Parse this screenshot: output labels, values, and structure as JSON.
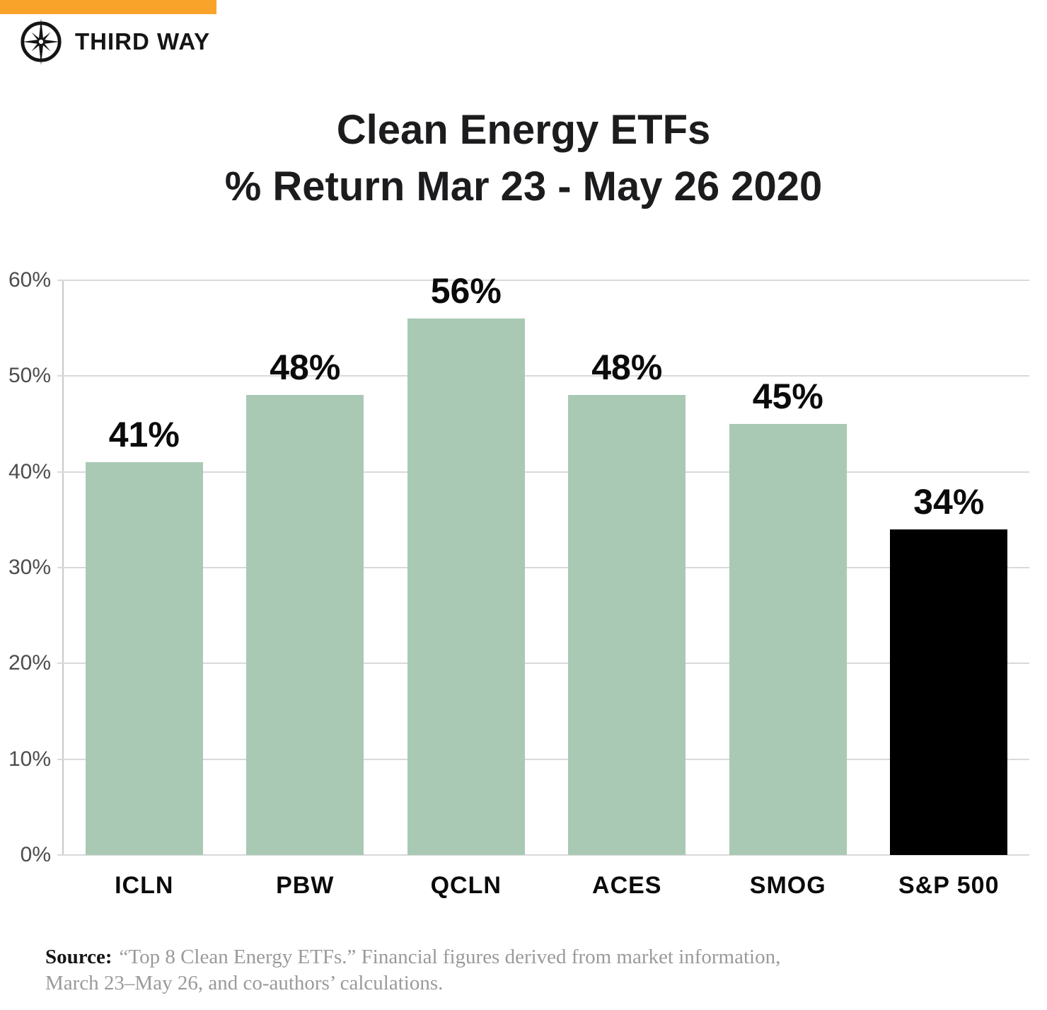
{
  "brand": {
    "name": "THIRD WAY",
    "accent_color": "#FAA32B",
    "logo_icon": "compass-star-icon"
  },
  "title": {
    "line1": "Clean Energy ETFs",
    "line2": "% Return Mar 23 - May 26 2020"
  },
  "chart_data": {
    "type": "bar",
    "title": "Clean Energy ETFs % Return Mar 23 - May 26 2020",
    "categories": [
      "ICLN",
      "PBW",
      "QCLN",
      "ACES",
      "SMOG",
      "S&P 500"
    ],
    "values": [
      41,
      48,
      56,
      48,
      45,
      34
    ],
    "value_labels": [
      "41%",
      "48%",
      "56%",
      "48%",
      "45%",
      "34%"
    ],
    "bar_colors": [
      "#A9C9B5",
      "#A9C9B5",
      "#A9C9B5",
      "#A9C9B5",
      "#A9C9B5",
      "#000000"
    ],
    "xlabel": "",
    "ylabel": "",
    "ylim": [
      0,
      60
    ],
    "ytick_step": 10,
    "ytick_suffix": "%",
    "grid": true,
    "legend": false,
    "colors": {
      "clean_energy_bar": "#A9C9B5",
      "sp500_bar": "#000000",
      "gridline": "#D9D9D9",
      "axis_label": "#4D4D4F"
    }
  },
  "source": {
    "label": "Source:",
    "line1": "“Top 8 Clean Energy ETFs.” Financial figures derived from market information,",
    "line2": "March 23–May 26, and co-authors’ calculations."
  }
}
